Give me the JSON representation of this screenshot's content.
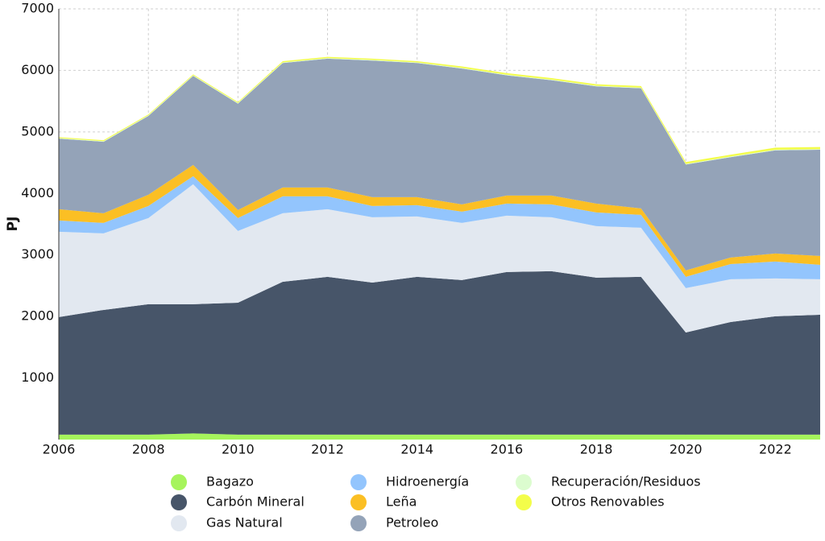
{
  "chart_data": {
    "type": "stacked_area",
    "y_label": "PJ",
    "x": [
      2006,
      2007,
      2008,
      2009,
      2010,
      2011,
      2012,
      2013,
      2014,
      2015,
      2016,
      2017,
      2018,
      2019,
      2020,
      2021,
      2022,
      2023
    ],
    "xlim": [
      2006,
      2023
    ],
    "xticks": [
      2006,
      2008,
      2010,
      2012,
      2014,
      2016,
      2018,
      2020,
      2022
    ],
    "ylim": [
      0,
      7000
    ],
    "yticks": [
      1000,
      2000,
      3000,
      4000,
      5000,
      6000,
      7000
    ],
    "grid": true,
    "series": [
      {
        "name": "Bagazo",
        "color": "#a6f45c",
        "values": [
          80,
          80,
          80,
          100,
          80,
          80,
          80,
          80,
          80,
          80,
          80,
          80,
          80,
          80,
          80,
          80,
          80,
          80
        ]
      },
      {
        "name": "Carbón Mineral",
        "color": "#475569",
        "values": [
          1910,
          2027,
          2119,
          2099,
          2145,
          2485,
          2564,
          2472,
          2564,
          2512,
          2643,
          2656,
          2551,
          2564,
          1661,
          1831,
          1923,
          1949
        ]
      },
      {
        "name": "Gas Natural",
        "color": "#e2e8f0",
        "values": [
          1387,
          1244,
          1401,
          1950,
          1165,
          1113,
          1099,
          1061,
          982,
          929,
          916,
          877,
          838,
          798,
          720,
          694,
          615,
          576
        ]
      },
      {
        "name": "Hidroenergía",
        "color": "#93c5fd",
        "values": [
          183,
          170,
          196,
          131,
          209,
          275,
          210,
          183,
          183,
          183,
          196,
          209,
          222,
          210,
          183,
          248,
          275,
          235
        ]
      },
      {
        "name": "Leña",
        "color": "#fbbf24",
        "values": [
          183,
          157,
          183,
          183,
          131,
          144,
          144,
          144,
          131,
          118,
          131,
          144,
          144,
          105,
          105,
          105,
          131,
          144
        ]
      },
      {
        "name": "Petroleo",
        "color": "#94a3b8",
        "values": [
          1147,
          1162,
          1281,
          1447,
          1730,
          2023,
          2093,
          2220,
          2180,
          2208,
          1954,
          1874,
          1905,
          1953,
          1721,
          1632,
          1676,
          1726
        ]
      },
      {
        "name": "Recuperación/Residuos",
        "color": "#dcfccf",
        "values": [
          10,
          10,
          10,
          10,
          10,
          10,
          10,
          10,
          10,
          10,
          10,
          10,
          10,
          10,
          10,
          10,
          10,
          10
        ]
      },
      {
        "name": "Otros Renovables",
        "color": "#f3fd4a",
        "values": [
          15,
          15,
          15,
          15,
          15,
          20,
          20,
          20,
          20,
          25,
          25,
          25,
          25,
          25,
          30,
          30,
          35,
          35
        ]
      }
    ]
  }
}
